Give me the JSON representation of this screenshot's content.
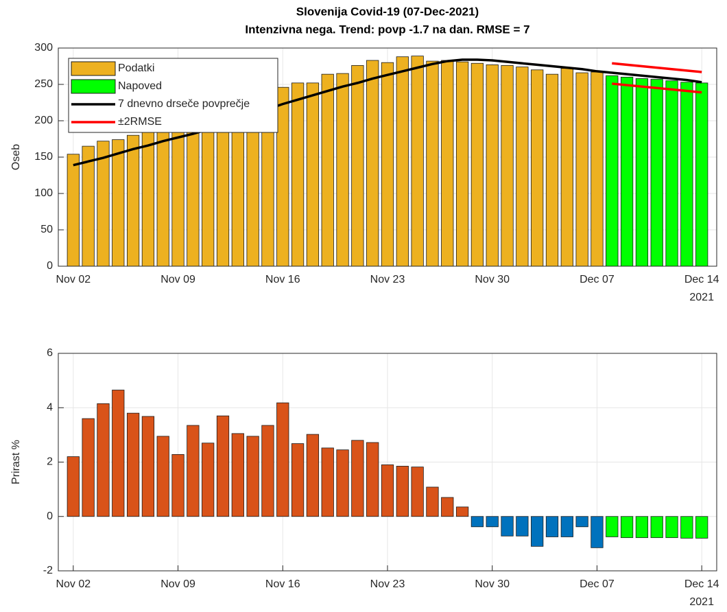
{
  "chart_data": [
    {
      "type": "bar",
      "title": "Slovenija Covid-19 (07-Dec-2021)",
      "subtitle": "Intenzivna nega. Trend: povp -1.7 na dan. RMSE = 7",
      "ylabel": "Oseb",
      "year_label": "2021",
      "x": [
        "2021-11-02",
        "2021-11-03",
        "2021-11-04",
        "2021-11-05",
        "2021-11-06",
        "2021-11-07",
        "2021-11-08",
        "2021-11-09",
        "2021-11-10",
        "2021-11-11",
        "2021-11-12",
        "2021-11-13",
        "2021-11-14",
        "2021-11-15",
        "2021-11-16",
        "2021-11-17",
        "2021-11-18",
        "2021-11-19",
        "2021-11-20",
        "2021-11-21",
        "2021-11-22",
        "2021-11-23",
        "2021-11-24",
        "2021-11-25",
        "2021-11-26",
        "2021-11-27",
        "2021-11-28",
        "2021-11-29",
        "2021-11-30",
        "2021-12-01",
        "2021-12-02",
        "2021-12-03",
        "2021-12-04",
        "2021-12-05",
        "2021-12-06",
        "2021-12-07",
        "2021-12-08",
        "2021-12-09",
        "2021-12-10",
        "2021-12-11",
        "2021-12-12",
        "2021-12-13",
        "2021-12-14"
      ],
      "series": [
        {
          "name": "Podatki",
          "kind": "bar",
          "color": "#edb120",
          "values": [
            154,
            165,
            172,
            174,
            180,
            187,
            193,
            190,
            198,
            205,
            215,
            220,
            228,
            238,
            246,
            252,
            252,
            264,
            265,
            276,
            283,
            280,
            288,
            289,
            282,
            283,
            281,
            279,
            277,
            276,
            274,
            270,
            264,
            272,
            266,
            267,
            259,
            null,
            null,
            null,
            null,
            null,
            null
          ]
        },
        {
          "name": "Napoved",
          "kind": "bar",
          "color": "#00ff00",
          "values": [
            null,
            null,
            null,
            null,
            null,
            null,
            null,
            null,
            null,
            null,
            null,
            null,
            null,
            null,
            null,
            null,
            null,
            null,
            null,
            null,
            null,
            null,
            null,
            null,
            null,
            null,
            null,
            null,
            null,
            null,
            null,
            null,
            null,
            null,
            null,
            null,
            262,
            260,
            258,
            257,
            255,
            253,
            252
          ]
        },
        {
          "name": "7 dnevno drseče povprečje",
          "kind": "line",
          "color": "#000000",
          "values": [
            139,
            144,
            149,
            155,
            161,
            166,
            172,
            177,
            182,
            188,
            195,
            202,
            209,
            216,
            223,
            229,
            235,
            241,
            247,
            252,
            258,
            263,
            268,
            273,
            278,
            282,
            284,
            284,
            283,
            281,
            279,
            277,
            275,
            273,
            271,
            268,
            266,
            264,
            262,
            260,
            258,
            256,
            253
          ]
        },
        {
          "name": "±2RMSE",
          "kind": "line",
          "color": "#ff0000",
          "values": [
            null,
            null,
            null,
            null,
            null,
            null,
            null,
            null,
            null,
            null,
            null,
            null,
            null,
            null,
            null,
            null,
            null,
            null,
            null,
            null,
            null,
            null,
            null,
            null,
            null,
            null,
            null,
            null,
            null,
            null,
            null,
            null,
            null,
            null,
            null,
            null,
            279,
            277,
            275,
            273,
            271,
            269,
            267
          ],
          "lower": [
            null,
            null,
            null,
            null,
            null,
            null,
            null,
            null,
            null,
            null,
            null,
            null,
            null,
            null,
            null,
            null,
            null,
            null,
            null,
            null,
            null,
            null,
            null,
            null,
            null,
            null,
            null,
            null,
            null,
            null,
            null,
            null,
            null,
            null,
            null,
            null,
            251,
            249,
            247,
            245,
            243,
            241,
            239
          ]
        }
      ],
      "xlim": [
        "2021-11-01",
        "2021-12-15"
      ],
      "xticks": [
        {
          "value": "2021-11-02",
          "label": "Nov 02"
        },
        {
          "value": "2021-11-09",
          "label": "Nov 09"
        },
        {
          "value": "2021-11-16",
          "label": "Nov 16"
        },
        {
          "value": "2021-11-23",
          "label": "Nov 23"
        },
        {
          "value": "2021-11-30",
          "label": "Nov 30"
        },
        {
          "value": "2021-12-07",
          "label": "Dec 07"
        },
        {
          "value": "2021-12-14",
          "label": "Dec 14"
        }
      ],
      "ylim": [
        0,
        300
      ],
      "yticks": [
        0,
        50,
        100,
        150,
        200,
        250,
        300
      ],
      "grid": true,
      "legend": "upper-left"
    },
    {
      "type": "bar",
      "ylabel": "Prirast %",
      "year_label": "2021",
      "x": [
        "2021-11-02",
        "2021-11-03",
        "2021-11-04",
        "2021-11-05",
        "2021-11-06",
        "2021-11-07",
        "2021-11-08",
        "2021-11-09",
        "2021-11-10",
        "2021-11-11",
        "2021-11-12",
        "2021-11-13",
        "2021-11-14",
        "2021-11-15",
        "2021-11-16",
        "2021-11-17",
        "2021-11-18",
        "2021-11-19",
        "2021-11-20",
        "2021-11-21",
        "2021-11-22",
        "2021-11-23",
        "2021-11-24",
        "2021-11-25",
        "2021-11-26",
        "2021-11-27",
        "2021-11-28",
        "2021-11-29",
        "2021-11-30",
        "2021-12-01",
        "2021-12-02",
        "2021-12-03",
        "2021-12-04",
        "2021-12-05",
        "2021-12-06",
        "2021-12-07",
        "2021-12-08",
        "2021-12-09",
        "2021-12-10",
        "2021-12-11",
        "2021-12-12",
        "2021-12-13",
        "2021-12-14"
      ],
      "values": [
        2.2,
        3.6,
        4.15,
        4.65,
        3.8,
        3.68,
        2.95,
        2.28,
        3.35,
        2.7,
        3.7,
        3.05,
        2.95,
        3.35,
        4.18,
        2.68,
        3.02,
        2.52,
        2.45,
        2.8,
        2.72,
        1.9,
        1.85,
        1.82,
        1.08,
        0.7,
        0.35,
        -0.38,
        -0.38,
        -0.72,
        -0.72,
        -1.1,
        -0.75,
        -0.75,
        -0.38,
        -1.15,
        -0.75,
        -0.78,
        -0.78,
        -0.78,
        -0.78,
        -0.8,
        -0.8
      ],
      "colors": [
        "#d95319",
        "#d95319",
        "#d95319",
        "#d95319",
        "#d95319",
        "#d95319",
        "#d95319",
        "#d95319",
        "#d95319",
        "#d95319",
        "#d95319",
        "#d95319",
        "#d95319",
        "#d95319",
        "#d95319",
        "#d95319",
        "#d95319",
        "#d95319",
        "#d95319",
        "#d95319",
        "#d95319",
        "#d95319",
        "#d95319",
        "#d95319",
        "#d95319",
        "#d95319",
        "#d95319",
        "#0072bd",
        "#0072bd",
        "#0072bd",
        "#0072bd",
        "#0072bd",
        "#0072bd",
        "#0072bd",
        "#0072bd",
        "#0072bd",
        "#00ff00",
        "#00ff00",
        "#00ff00",
        "#00ff00",
        "#00ff00",
        "#00ff00",
        "#00ff00"
      ],
      "xlim": [
        "2021-11-01",
        "2021-12-15"
      ],
      "xticks": [
        {
          "value": "2021-11-02",
          "label": "Nov 02"
        },
        {
          "value": "2021-11-09",
          "label": "Nov 09"
        },
        {
          "value": "2021-11-16",
          "label": "Nov 16"
        },
        {
          "value": "2021-11-23",
          "label": "Nov 23"
        },
        {
          "value": "2021-11-30",
          "label": "Nov 30"
        },
        {
          "value": "2021-12-07",
          "label": "Dec 07"
        },
        {
          "value": "2021-12-14",
          "label": "Dec 14"
        }
      ],
      "ylim": [
        -2,
        6
      ],
      "yticks": [
        -2,
        0,
        2,
        4,
        6
      ],
      "grid": true
    }
  ]
}
